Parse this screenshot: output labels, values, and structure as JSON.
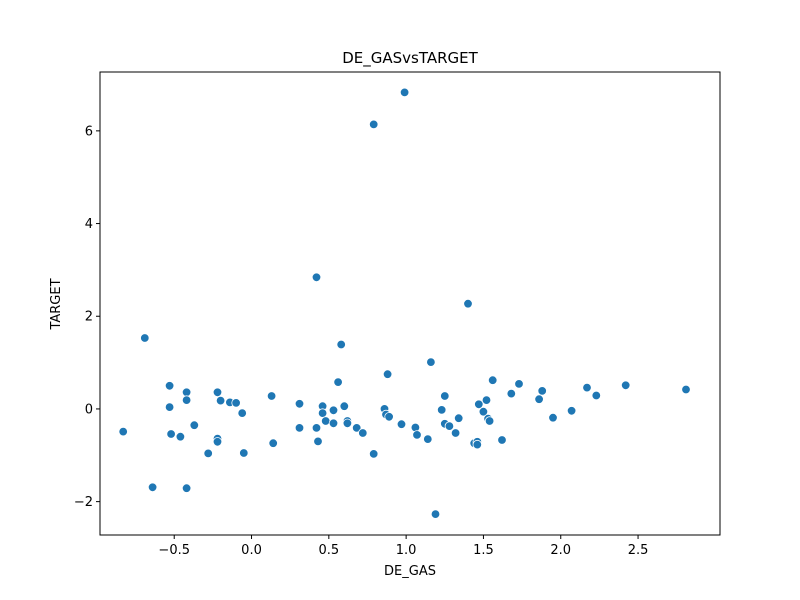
{
  "chart_data": {
    "type": "scatter",
    "title": "DE_GASvsTARGET",
    "xlabel": "DE_GAS",
    "ylabel": "TARGET",
    "xlim": [
      -0.98,
      3.03
    ],
    "ylim": [
      -2.72,
      7.27
    ],
    "x_ticks": [
      -0.5,
      0.0,
      0.5,
      1.0,
      1.5,
      2.0,
      2.5
    ],
    "x_tick_labels": [
      "−0.5",
      "0.0",
      "0.5",
      "1.0",
      "1.5",
      "2.0",
      "2.5"
    ],
    "y_ticks": [
      -2,
      0,
      2,
      4,
      6
    ],
    "y_tick_labels": [
      "−2",
      "0",
      "2",
      "4",
      "6"
    ],
    "grid": false,
    "point_color": "#1f77b4",
    "points": [
      {
        "x": -0.83,
        "y": -0.49
      },
      {
        "x": -0.69,
        "y": 1.53
      },
      {
        "x": -0.64,
        "y": -1.69
      },
      {
        "x": -0.53,
        "y": 0.5
      },
      {
        "x": -0.53,
        "y": 0.04
      },
      {
        "x": -0.52,
        "y": -0.54
      },
      {
        "x": -0.46,
        "y": -0.6
      },
      {
        "x": -0.42,
        "y": 0.36
      },
      {
        "x": -0.42,
        "y": 0.19
      },
      {
        "x": -0.42,
        "y": -1.71
      },
      {
        "x": -0.37,
        "y": -0.35
      },
      {
        "x": -0.28,
        "y": -0.96
      },
      {
        "x": -0.22,
        "y": 0.36
      },
      {
        "x": -0.22,
        "y": -0.64
      },
      {
        "x": -0.22,
        "y": -0.71
      },
      {
        "x": -0.2,
        "y": 0.18
      },
      {
        "x": -0.14,
        "y": 0.14
      },
      {
        "x": -0.1,
        "y": 0.13
      },
      {
        "x": -0.06,
        "y": -0.09
      },
      {
        "x": -0.05,
        "y": -0.95
      },
      {
        "x": 0.13,
        "y": 0.28
      },
      {
        "x": 0.14,
        "y": -0.74
      },
      {
        "x": 0.31,
        "y": 0.11
      },
      {
        "x": 0.31,
        "y": -0.41
      },
      {
        "x": 0.42,
        "y": 2.84
      },
      {
        "x": 0.42,
        "y": -0.41
      },
      {
        "x": 0.43,
        "y": -0.7
      },
      {
        "x": 0.46,
        "y": 0.06
      },
      {
        "x": 0.46,
        "y": -0.09
      },
      {
        "x": 0.48,
        "y": -0.26
      },
      {
        "x": 0.53,
        "y": -0.03
      },
      {
        "x": 0.53,
        "y": -0.31
      },
      {
        "x": 0.56,
        "y": 0.58
      },
      {
        "x": 0.58,
        "y": 1.39
      },
      {
        "x": 0.6,
        "y": 0.06
      },
      {
        "x": 0.62,
        "y": -0.26
      },
      {
        "x": 0.62,
        "y": -0.31
      },
      {
        "x": 0.68,
        "y": -0.41
      },
      {
        "x": 0.72,
        "y": -0.52
      },
      {
        "x": 0.79,
        "y": 6.14
      },
      {
        "x": 0.79,
        "y": -0.97
      },
      {
        "x": 0.86,
        "y": 0.0
      },
      {
        "x": 0.87,
        "y": -0.12
      },
      {
        "x": 0.88,
        "y": 0.75
      },
      {
        "x": 0.89,
        "y": -0.17
      },
      {
        "x": 0.97,
        "y": -0.33
      },
      {
        "x": 0.99,
        "y": 6.83
      },
      {
        "x": 1.06,
        "y": -0.4
      },
      {
        "x": 1.07,
        "y": -0.56
      },
      {
        "x": 1.14,
        "y": -0.65
      },
      {
        "x": 1.16,
        "y": 1.01
      },
      {
        "x": 1.19,
        "y": -2.27
      },
      {
        "x": 1.23,
        "y": -0.02
      },
      {
        "x": 1.25,
        "y": 0.28
      },
      {
        "x": 1.25,
        "y": -0.32
      },
      {
        "x": 1.28,
        "y": -0.37
      },
      {
        "x": 1.32,
        "y": -0.52
      },
      {
        "x": 1.34,
        "y": -0.2
      },
      {
        "x": 1.4,
        "y": 2.27
      },
      {
        "x": 1.44,
        "y": -0.74
      },
      {
        "x": 1.46,
        "y": -0.71
      },
      {
        "x": 1.46,
        "y": -0.77
      },
      {
        "x": 1.47,
        "y": 0.1
      },
      {
        "x": 1.5,
        "y": -0.06
      },
      {
        "x": 1.52,
        "y": 0.19
      },
      {
        "x": 1.53,
        "y": -0.21
      },
      {
        "x": 1.54,
        "y": -0.26
      },
      {
        "x": 1.56,
        "y": 0.62
      },
      {
        "x": 1.62,
        "y": -0.67
      },
      {
        "x": 1.68,
        "y": 0.33
      },
      {
        "x": 1.73,
        "y": 0.54
      },
      {
        "x": 1.86,
        "y": 0.21
      },
      {
        "x": 1.88,
        "y": 0.39
      },
      {
        "x": 1.95,
        "y": -0.19
      },
      {
        "x": 2.07,
        "y": -0.04
      },
      {
        "x": 2.17,
        "y": 0.46
      },
      {
        "x": 2.23,
        "y": 0.29
      },
      {
        "x": 2.42,
        "y": 0.51
      },
      {
        "x": 2.81,
        "y": 0.42
      }
    ]
  }
}
